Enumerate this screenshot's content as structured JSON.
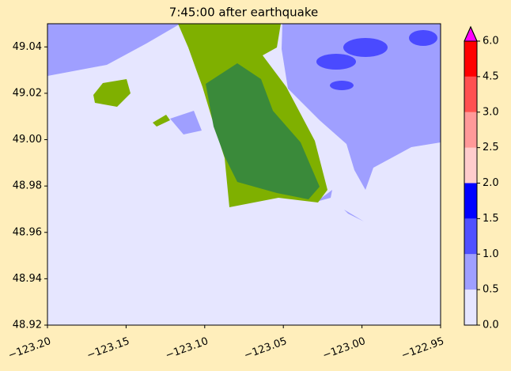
{
  "chart_data": {
    "type": "map",
    "title": "7:45:00 after earthquake",
    "xlim": [
      -123.2,
      -122.95
    ],
    "ylim": [
      48.92,
      49.05
    ],
    "xticks": [
      {
        "value": -123.2,
        "label": "−123.20"
      },
      {
        "value": -123.15,
        "label": "−123.15"
      },
      {
        "value": -123.1,
        "label": "−123.10"
      },
      {
        "value": -123.05,
        "label": "−123.05"
      },
      {
        "value": -123.0,
        "label": "−123.00"
      },
      {
        "value": -122.95,
        "label": "−122.95"
      }
    ],
    "yticks": [
      48.92,
      48.94,
      48.96,
      48.98,
      {
        "value": 49.0,
        "label": "49.00"
      },
      49.02,
      49.04
    ],
    "colorbar": {
      "ticks": [
        {
          "value": 0,
          "label": "0.0"
        },
        {
          "value": 0.5,
          "label": "0.5"
        },
        {
          "value": 1,
          "label": "1.0"
        },
        {
          "value": 1.5,
          "label": "1.5"
        },
        {
          "value": 2,
          "label": "2.0"
        },
        {
          "value": 2.5,
          "label": "2.5"
        },
        {
          "value": 3,
          "label": "3.0"
        },
        {
          "value": 4.5,
          "label": "4.5"
        },
        {
          "value": 6,
          "label": "6.0"
        }
      ],
      "colors": [
        "#e6e6ff",
        "#9f9fff",
        "#5050ff",
        "#0000ff",
        "#ffcccc",
        "#ff9999",
        "#ff5050",
        "#ff0000"
      ],
      "extend_color": "#ff00ff"
    }
  }
}
